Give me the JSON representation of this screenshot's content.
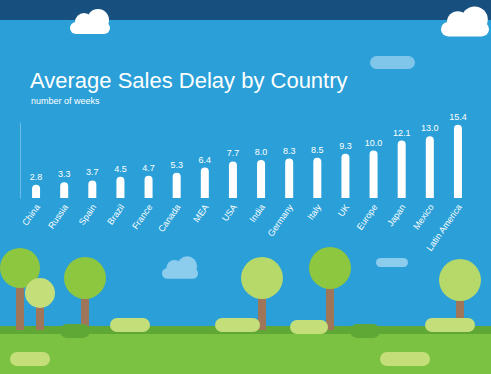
{
  "chart_data": {
    "type": "bar",
    "title": "Average Sales Delay by Country",
    "subtitle": "number of weeks",
    "categories": [
      "China",
      "Russia",
      "Spain",
      "Brazil",
      "France",
      "Canada",
      "MEA",
      "USA",
      "India",
      "Germany",
      "Italy",
      "UK",
      "Europe",
      "Japan",
      "Mexico",
      "Latin America"
    ],
    "values": [
      2.8,
      3.3,
      3.7,
      4.5,
      4.7,
      5.3,
      6.4,
      7.7,
      8.0,
      8.3,
      8.5,
      9.3,
      10.0,
      12.1,
      13.0,
      15.4
    ],
    "value_labels": [
      "2.8",
      "3.3",
      "3.7",
      "4.5",
      "4.7",
      "5.3",
      "6.4",
      "7.7",
      "8.0",
      "8.3",
      "8.5",
      "9.3",
      "10.0",
      "12.1",
      "13.0",
      "15.4"
    ],
    "color": "#ffffff",
    "ylim": [
      0,
      16
    ],
    "data_labels": true,
    "tick_labels": "x",
    "grid": false
  }
}
